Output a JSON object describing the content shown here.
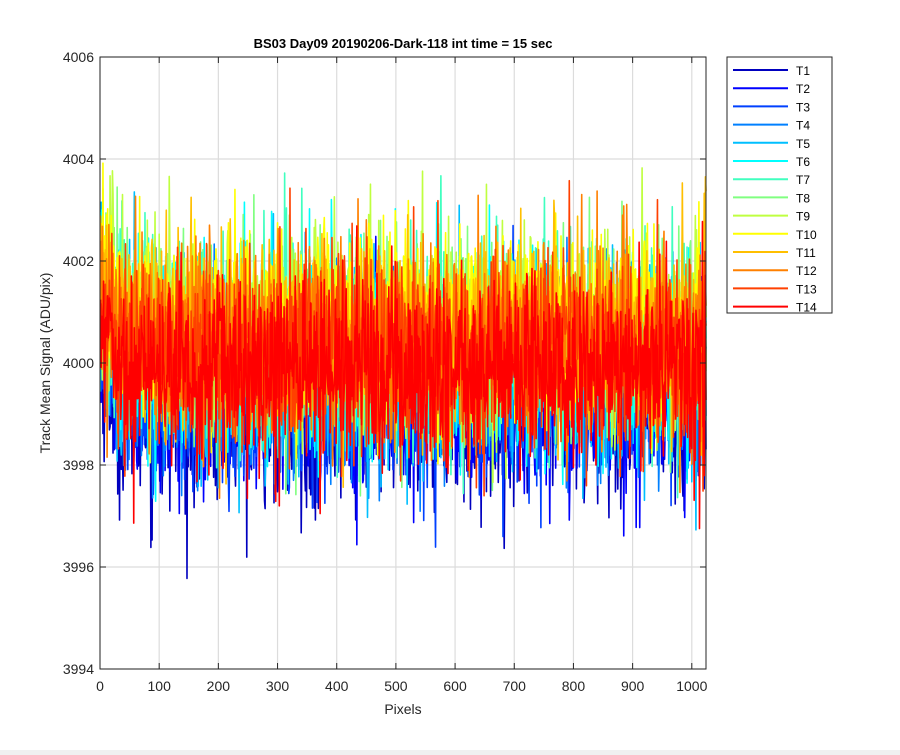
{
  "chart_data": {
    "type": "line",
    "title": "BS03 Day09 20190206-Dark-118 int time = 15 sec",
    "xlabel": "Pixels",
    "ylabel": "Track Mean Signal (ADU/pix)",
    "xlim": [
      0,
      1024
    ],
    "ylim": [
      3994,
      4006
    ],
    "xticks": [
      0,
      100,
      200,
      300,
      400,
      500,
      600,
      700,
      800,
      900,
      1000
    ],
    "yticks": [
      3994,
      3996,
      3998,
      4000,
      4002,
      4004,
      4006
    ],
    "grid": true,
    "legend_position": "outside-right-top",
    "n_points_per_series": 1024,
    "series": [
      {
        "name": "T1",
        "color": "#0000bf",
        "mean": 3999.1,
        "std": 0.95
      },
      {
        "name": "T2",
        "color": "#0000ff",
        "mean": 3999.4,
        "std": 0.9
      },
      {
        "name": "T3",
        "color": "#0040ff",
        "mean": 3999.5,
        "std": 0.9
      },
      {
        "name": "T4",
        "color": "#0080ff",
        "mean": 3999.8,
        "std": 0.95
      },
      {
        "name": "T5",
        "color": "#00bfff",
        "mean": 4000.0,
        "std": 1.0
      },
      {
        "name": "T6",
        "color": "#00ffff",
        "mean": 4000.3,
        "std": 1.0
      },
      {
        "name": "T7",
        "color": "#40ffbf",
        "mean": 4000.4,
        "std": 1.0
      },
      {
        "name": "T8",
        "color": "#80ff80",
        "mean": 4000.5,
        "std": 1.0
      },
      {
        "name": "T9",
        "color": "#bfff40",
        "mean": 4000.6,
        "std": 0.95
      },
      {
        "name": "T10",
        "color": "#ffff00",
        "mean": 4000.7,
        "std": 0.95
      },
      {
        "name": "T11",
        "color": "#ffbf00",
        "mean": 4000.6,
        "std": 0.95
      },
      {
        "name": "T12",
        "color": "#ff8000",
        "mean": 4000.4,
        "std": 0.95
      },
      {
        "name": "T13",
        "color": "#ff4000",
        "mean": 4000.2,
        "std": 0.95
      },
      {
        "name": "T14",
        "color": "#ff0000",
        "mean": 3999.9,
        "std": 0.95
      }
    ]
  }
}
